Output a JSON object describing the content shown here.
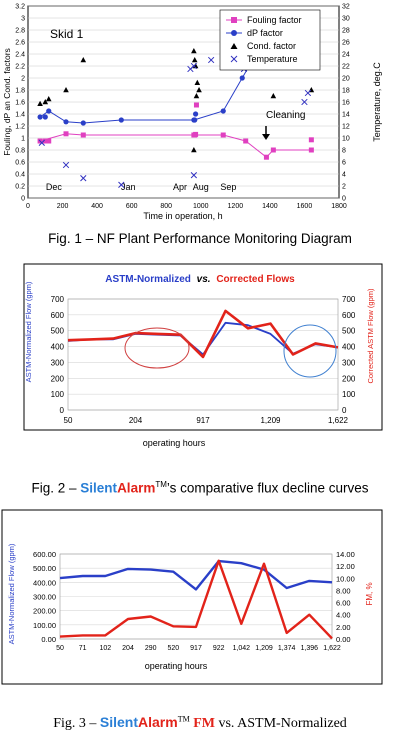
{
  "charts": [
    {
      "chart_data": {
        "type": "scatter",
        "annotation": "Skid 1",
        "xlabel": "Time in operation, h",
        "ylabel": "Fouling, dP an Cond. factors",
        "y2label": "Temperature, deg.C",
        "xlim": [
          0,
          1800
        ],
        "ylim": [
          0,
          3.2
        ],
        "y2lim": [
          0,
          32
        ],
        "xticks": [
          "0",
          "200",
          "400",
          "600",
          "800",
          "1000",
          "1200",
          "1400",
          "1600",
          "1800"
        ],
        "yticks": [
          "0",
          "0.2",
          "0.4",
          "0.6",
          "0.8",
          "1",
          "1.2",
          "1.4",
          "1.6",
          "1.8",
          "2",
          "2.2",
          "2.4",
          "2.6",
          "2.8",
          "3",
          "3.2"
        ],
        "y2ticks": [
          "0",
          "2",
          "4",
          "6",
          "8",
          "10",
          "12",
          "14",
          "16",
          "18",
          "20",
          "22",
          "24",
          "26",
          "28",
          "30",
          "32"
        ],
        "period_labels": [
          {
            "text": "Dec",
            "x": 150
          },
          {
            "text": "Jan",
            "x": 580
          },
          {
            "text": "Apr",
            "x": 880
          },
          {
            "text": "Aug",
            "x": 1000
          },
          {
            "text": "Sep",
            "x": 1160
          }
        ],
        "cleaning_label": "Cleaning",
        "legend_position": "top-right",
        "grid": "horizontal",
        "series": [
          {
            "name": "Fouling factor",
            "marker": "square",
            "color": "#e040c0",
            "axis": "left",
            "points": [
              [
                70,
                0.95
              ],
              [
                100,
                0.95
              ],
              [
                120,
                0.95
              ],
              [
                220,
                1.07
              ],
              [
                320,
                1.05
              ],
              [
                960,
                1.05
              ],
              [
                965,
                1.05
              ],
              [
                970,
                1.06
              ],
              [
                975,
                1.55
              ],
              [
                1130,
                1.05
              ],
              [
                1260,
                0.95
              ],
              [
                1380,
                0.68
              ],
              [
                1420,
                0.8
              ],
              [
                1640,
                0.8
              ]
            ],
            "line": [
              [
                70,
                0.95
              ],
              [
                220,
                1.07
              ],
              [
                320,
                1.05
              ],
              [
                960,
                1.05
              ],
              [
                1130,
                1.05
              ],
              [
                1260,
                0.95
              ],
              [
                1380,
                0.68
              ],
              [
                1420,
                0.8
              ],
              [
                1640,
                0.8
              ]
            ],
            "extra_points": [
              [
                1640,
                0.97
              ]
            ]
          },
          {
            "name": "dP factor",
            "marker": "circle",
            "color": "#2a3fc8",
            "axis": "left",
            "points": [
              [
                70,
                1.35
              ],
              [
                100,
                1.35
              ],
              [
                120,
                1.45
              ],
              [
                220,
                1.27
              ],
              [
                320,
                1.25
              ],
              [
                540,
                1.3
              ],
              [
                960,
                1.3
              ],
              [
                965,
                1.3
              ],
              [
                970,
                1.4
              ],
              [
                1130,
                1.45
              ],
              [
                1240,
                2.0
              ],
              [
                1410,
                2.85
              ],
              [
                1440,
                2.82
              ],
              [
                1630,
                2.4
              ],
              [
                1650,
                2.25
              ]
            ],
            "line": [
              [
                70,
                1.35
              ],
              [
                120,
                1.45
              ],
              [
                220,
                1.27
              ],
              [
                320,
                1.25
              ],
              [
                540,
                1.3
              ],
              [
                960,
                1.3
              ],
              [
                1130,
                1.45
              ],
              [
                1240,
                2.0
              ],
              [
                1410,
                2.85
              ],
              [
                1440,
                2.82
              ],
              [
                1630,
                2.4
              ],
              [
                1650,
                2.25
              ]
            ]
          },
          {
            "name": "Cond. factor",
            "marker": "triangle",
            "color": "#000000",
            "axis": "left",
            "points": [
              [
                70,
                1.57
              ],
              [
                100,
                1.6
              ],
              [
                120,
                1.65
              ],
              [
                220,
                1.8
              ],
              [
                320,
                2.3
              ],
              [
                960,
                2.45
              ],
              [
                965,
                2.3
              ],
              [
                970,
                2.2
              ],
              [
                980,
                1.92
              ],
              [
                990,
                1.8
              ],
              [
                975,
                1.7
              ],
              [
                960,
                0.8
              ],
              [
                1420,
                1.7
              ],
              [
                1640,
                1.8
              ]
            ]
          },
          {
            "name": "Temperature",
            "marker": "x",
            "color": "#3030c0",
            "axis": "right",
            "points": [
              [
                80,
                9.2
              ],
              [
                220,
                5.5
              ],
              [
                320,
                3.3
              ],
              [
                540,
                2.2
              ],
              [
                940,
                21.5
              ],
              [
                960,
                22.0
              ],
              [
                960,
                3.8
              ],
              [
                1060,
                23.0
              ],
              [
                1250,
                21.5
              ],
              [
                1380,
                24.0
              ],
              [
                1400,
                23.0
              ],
              [
                1600,
                16.0
              ],
              [
                1620,
                17.5
              ]
            ]
          }
        ]
      }
    },
    {
      "chart_data": {
        "type": "line",
        "title_part1": "ASTM-Normalized",
        "title_part2": "vs.",
        "title_part3": "Corrected Flows",
        "xlabel": "operating hours",
        "ylabel": "ASTM-Normalized Flow (gpm)",
        "y2label": "Corrected ASTM Flow (gpm)",
        "ylim": [
          0,
          700
        ],
        "y2lim": [
          0,
          700
        ],
        "yticks": [
          "0",
          "100",
          "200",
          "300",
          "400",
          "500",
          "600",
          "700"
        ],
        "xtick_labels": [
          "50",
          "204",
          "917",
          "1,209",
          "1,622"
        ],
        "grid": "horizontal",
        "series": [
          {
            "name": "ASTM-Normalized",
            "color": "#2a3fc8",
            "values": [
              435,
              445,
              445,
              480,
              475,
              470,
              350,
              550,
              535,
              480,
              355,
              415,
              395
            ]
          },
          {
            "name": "Corrected Flows",
            "color": "#e2231a",
            "values": [
              440,
              445,
              450,
              485,
              480,
              475,
              335,
              625,
              515,
              545,
              350,
              420,
              395
            ]
          }
        ]
      }
    },
    {
      "chart_data": {
        "type": "line",
        "xlabel": "operating hours",
        "ylabel": "ASTM-Normalized Flow (gpm)",
        "y2label": "FM, %",
        "ylim": [
          0,
          600
        ],
        "y2lim": [
          0,
          14
        ],
        "yticks": [
          "0.00",
          "100.00",
          "200.00",
          "300.00",
          "400.00",
          "500.00",
          "600.00"
        ],
        "y2ticks": [
          "0.00",
          "2.00",
          "4.00",
          "6.00",
          "8.00",
          "10.00",
          "12.00",
          "14.00"
        ],
        "categories": [
          "50",
          "71",
          "102",
          "204",
          "290",
          "520",
          "917",
          "922",
          "1,042",
          "1,209",
          "1,374",
          "1,396",
          "1,622"
        ],
        "grid": "horizontal",
        "series": [
          {
            "name": "ASTM-Normalized",
            "axis": "left",
            "color": "#2a3fc8",
            "values": [
              430,
              445,
              445,
              495,
              490,
              475,
              350,
              550,
              535,
              490,
              360,
              410,
              400
            ]
          },
          {
            "name": "FM",
            "axis": "right",
            "color": "#e2231a",
            "values": [
              0.4,
              0.6,
              0.6,
              3.3,
              3.7,
              2.1,
              2.0,
              12.9,
              2.5,
              12.4,
              1.0,
              4.0,
              0.1
            ]
          }
        ]
      }
    }
  ],
  "captions": {
    "fig1": "Fig. 1 – NF Plant Performance Monitoring Diagram",
    "fig2_prefix": "Fig. 2 – ",
    "fig2_silent": "Silent",
    "fig2_alarm": "Alarm",
    "fig2_tm": "TM",
    "fig2_suffix": "’s comparative flux decline curves",
    "fig3_prefix": "Fig. 3 – ",
    "fig3_silent": "Silent",
    "fig3_alarm": "Alarm",
    "fig3_tm": "TM",
    "fig3_fm": "FM",
    "fig3_suffix": " vs. ASTM-Normalized"
  },
  "colors": {
    "fouling": "#e040c0",
    "dp": "#2a3fc8",
    "cond": "#000000",
    "temperature": "#3030c0",
    "astm": "#2a3fc8",
    "corrected": "#e2231a",
    "fm": "#e2231a",
    "brand_blue": "#2a7fd6",
    "brand_red": "#e2231a"
  }
}
